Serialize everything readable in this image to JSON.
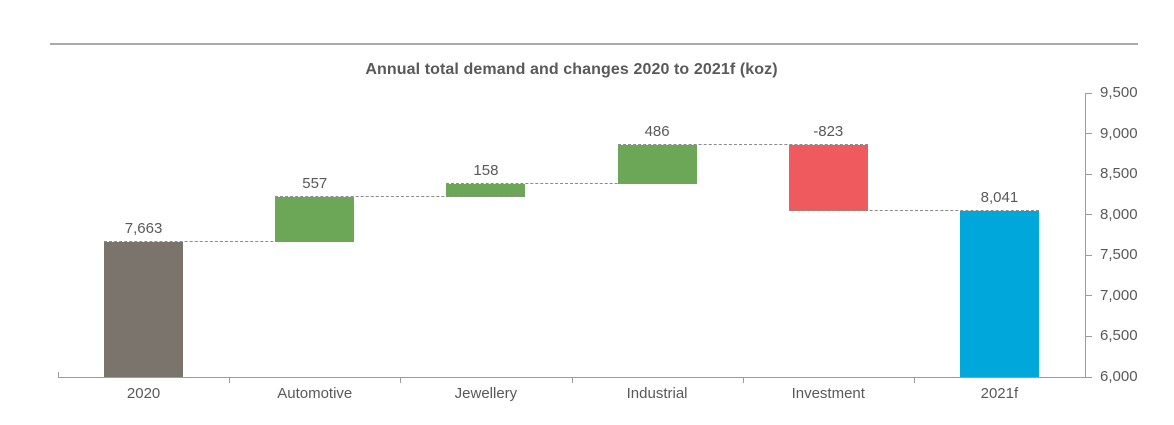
{
  "page": {
    "background": "#FFFFFF",
    "rule_color": "#ABABAB"
  },
  "chart_data": {
    "type": "bar",
    "subtype": "waterfall",
    "title": "Annual total demand and changes 2020 to 2021f (koz)",
    "categories": [
      "2020",
      "Automotive",
      "Jewellery",
      "Industrial",
      "Investment",
      "2021f"
    ],
    "series": [
      {
        "name": "Annual total demand and changes",
        "values": [
          7663,
          557,
          158,
          486,
          -823,
          8041
        ],
        "display_labels": [
          "7,663",
          "557",
          "158",
          "486",
          "-823",
          "8,041"
        ],
        "roles": [
          "total",
          "increase",
          "increase",
          "increase",
          "decrease",
          "total"
        ]
      }
    ],
    "cumulative_totals": [
      7663,
      8220,
      8378,
      8864,
      8041,
      8041
    ],
    "bar_colors": [
      "#7B746C",
      "#6BA756",
      "#6BA756",
      "#6BA756",
      "#EE5A5E",
      "#00A7DA"
    ],
    "color_legend": {
      "start_total": "#7B746C",
      "increase": "#6BA756",
      "decrease": "#EE5A5E",
      "end_total": "#00A7DA"
    },
    "xlabel": "",
    "ylabel": "",
    "ylim": [
      6000,
      9500
    ],
    "ytick_interval": 500,
    "ytick_labels": [
      "9,500",
      "9,000",
      "8,500",
      "8,000",
      "7,500",
      "7,000",
      "6,500",
      "6,000"
    ],
    "yaxis_side": "right",
    "grid": false,
    "legend": "none",
    "connector_style": "dashed",
    "connector_color": "#8C8C8C",
    "axis_color": "#9C9C9C",
    "text_color": "#595959"
  }
}
